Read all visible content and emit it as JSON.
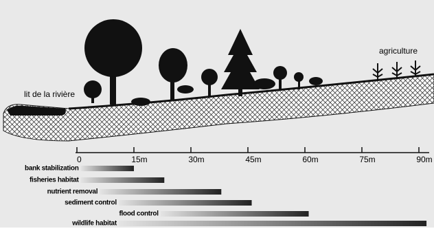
{
  "river_label": "lit de la rivière",
  "field_label": "agriculture",
  "scale": {
    "min": 0,
    "max": 90,
    "ticks": [
      0,
      {
        "value": 15,
        "label": "15m"
      },
      {
        "value": 30,
        "label": "30m"
      },
      {
        "value": 45,
        "label": "45m"
      },
      {
        "value": 60,
        "label": "60m"
      },
      {
        "value": 75,
        "label": "75m"
      },
      {
        "value": 90,
        "label": "90m"
      }
    ]
  },
  "functions": [
    {
      "label": "bank stabilization",
      "start": 1,
      "end": 15
    },
    {
      "label": "fisheries habitat",
      "start": 1,
      "end": 23
    },
    {
      "label": "nutrient removal",
      "start": 6,
      "end": 38
    },
    {
      "label": "sediment control",
      "start": 11,
      "end": 46
    },
    {
      "label": "flood control",
      "start": 22,
      "end": 61
    },
    {
      "label": "wildlife habitat",
      "start": 11,
      "end": 92
    }
  ]
}
